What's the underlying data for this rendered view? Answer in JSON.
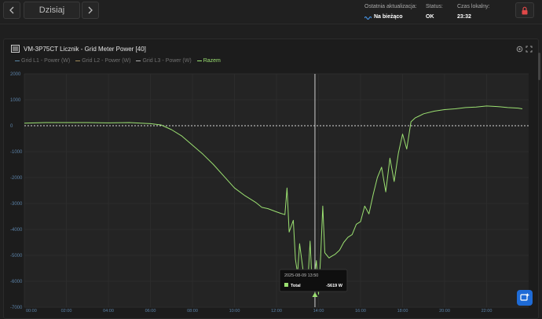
{
  "nav": {
    "prev_icon": "chevron-left-icon",
    "date_label": "Dzisiaj",
    "next_icon": "chevron-right-icon"
  },
  "status": {
    "last_update_label": "Ostatnia aktualizacja:",
    "last_update_value": "Na bieżąco",
    "status_label": "Status:",
    "status_value": "OK",
    "time_label": "Czas lokalny:",
    "time_value": "23:32",
    "live_icon": "wave-icon",
    "lock_icon": "lock-icon"
  },
  "panel": {
    "title": "VM-3P75CT Licznik - Grid Meter Power [40]",
    "settings_icon": "gear-icon",
    "expand_icon": "expand-icon",
    "logo_icon": "device-icon"
  },
  "legend": [
    {
      "label": "Grid L1 - Power (W)",
      "color": "#5b87a6",
      "muted": true
    },
    {
      "label": "Grid L2 - Power (W)",
      "color": "#a08a5a",
      "muted": true
    },
    {
      "label": "Grid L3 - Power (W)",
      "color": "#b0b0b0",
      "muted": true
    },
    {
      "label": "Razem",
      "color": "#9be071",
      "muted": false
    }
  ],
  "colors": {
    "series": "#9be071",
    "grid": "#2c2c2c",
    "axis_text": "#5b82a8",
    "zero_line": "#d8d8d8",
    "cursor": "#cfcfcf"
  },
  "tooltip": {
    "time": "2025-08-09 13:50",
    "series": "Total",
    "value": "-5619 W"
  },
  "chart_data": {
    "type": "line",
    "y_unit": "W",
    "ylim": [
      -7000,
      2000
    ],
    "y_ticks": [
      "2000",
      "1000",
      "0",
      "-1000",
      "-2000",
      "-3000",
      "-4000",
      "-5000",
      "-6000",
      "-7000"
    ],
    "y_tick_values": [
      2000,
      1000,
      0,
      -1000,
      -2000,
      -3000,
      -4000,
      -5000,
      -6000,
      -7000
    ],
    "xlim": [
      0,
      24
    ],
    "x_ticks": [
      "00:00",
      "02:00",
      "04:00",
      "06:00",
      "08:00",
      "10:00",
      "12:00",
      "14:00",
      "16:00",
      "18:00",
      "20:00",
      "22:00"
    ],
    "x_tick_values": [
      0,
      2,
      4,
      6,
      8,
      10,
      12,
      14,
      16,
      18,
      20,
      22
    ],
    "cursor_x": 13.83,
    "grid": true,
    "series": [
      {
        "name": "Razem",
        "x": [
          0,
          1,
          2,
          3,
          4,
          5,
          6,
          6.5,
          7,
          7.5,
          8,
          8.5,
          9,
          9.5,
          10,
          10.5,
          11,
          11.3,
          11.6,
          12,
          12.2,
          12.4,
          12.5,
          12.6,
          12.8,
          12.9,
          13,
          13.1,
          13.3,
          13.5,
          13.6,
          13.7,
          13.83,
          13.9,
          14,
          14.1,
          14.2,
          14.3,
          14.4,
          14.5,
          14.6,
          14.8,
          15,
          15.2,
          15.4,
          15.6,
          15.8,
          16,
          16.2,
          16.4,
          16.6,
          16.8,
          17,
          17.2,
          17.4,
          17.6,
          17.8,
          18,
          18.2,
          18.4,
          18.6,
          18.8,
          19,
          19.5,
          20,
          20.5,
          21,
          21.5,
          22,
          22.5,
          23,
          23.5,
          23.7
        ],
        "y": [
          100,
          120,
          120,
          120,
          110,
          120,
          80,
          30,
          -150,
          -400,
          -750,
          -1100,
          -1500,
          -1950,
          -2400,
          -2700,
          -2950,
          -3150,
          -3200,
          -3320,
          -3380,
          -3430,
          -2400,
          -4100,
          -3650,
          -5150,
          -5700,
          -4550,
          -5800,
          -5900,
          -4450,
          -6200,
          -5619,
          -5200,
          -6500,
          -5050,
          -3100,
          -4900,
          -5000,
          -5100,
          -5050,
          -4950,
          -4800,
          -4500,
          -4300,
          -4200,
          -3800,
          -3700,
          -3100,
          -3400,
          -2650,
          -2000,
          -1600,
          -2550,
          -1250,
          -2150,
          -1050,
          -320,
          -900,
          150,
          300,
          380,
          460,
          560,
          620,
          650,
          700,
          720,
          760,
          740,
          700,
          680,
          650
        ]
      }
    ]
  }
}
